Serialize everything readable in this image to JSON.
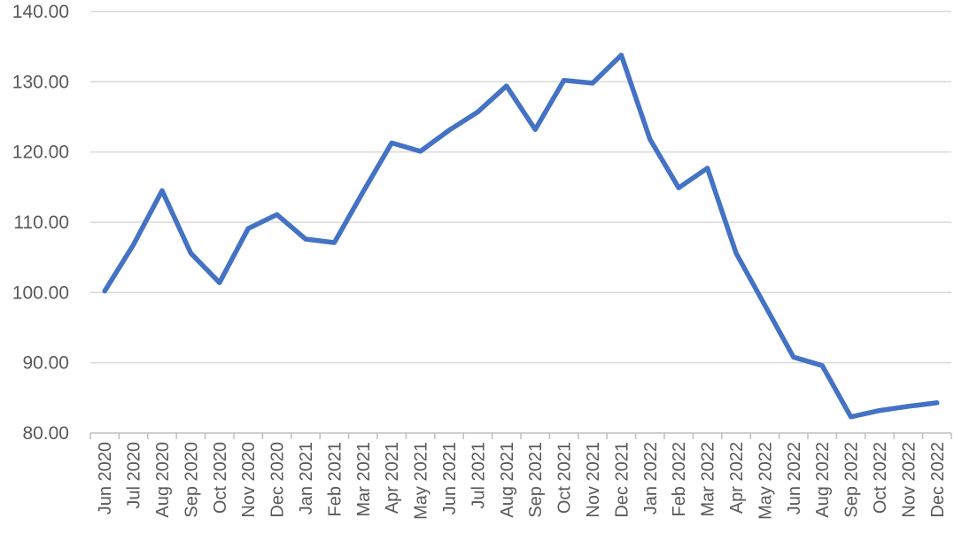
{
  "chart_data": {
    "type": "line",
    "title": "",
    "xlabel": "",
    "ylabel": "",
    "categories": [
      "Jun 2020",
      "Jul 2020",
      "Aug 2020",
      "Sep 2020",
      "Oct 2020",
      "Nov 2020",
      "Dec 2020",
      "Jan 2021",
      "Feb 2021",
      "Mar 2021",
      "Apr 2021",
      "May 2021",
      "Jun 2021",
      "Jul 2021",
      "Aug 2021",
      "Sep 2021",
      "Oct 2021",
      "Nov 2021",
      "Dec 2021",
      "Jan 2022",
      "Feb 2022",
      "Mar 2022",
      "Apr 2022",
      "May 2022",
      "Jun 2022",
      "Aug 2022",
      "Sep 2022",
      "Oct 2022",
      "Nov 2022",
      "Dec 2022"
    ],
    "series": [
      {
        "values": [
          100.2,
          106.8,
          114.5,
          105.6,
          101.4,
          109.1,
          111.1,
          107.6,
          107.1,
          114.3,
          121.3,
          120.1,
          123.1,
          125.7,
          129.4,
          123.2,
          130.2,
          129.8,
          133.8,
          121.8,
          114.9,
          117.7,
          105.6,
          98.2,
          90.8,
          89.6,
          82.3,
          83.2,
          83.8,
          84.3
        ],
        "color": "#4472C4"
      }
    ],
    "yticks": [
      "80.00",
      "90.00",
      "100.00",
      "110.00",
      "120.00",
      "130.00",
      "140.00"
    ],
    "ylim": [
      80,
      140
    ],
    "grid": true,
    "legend": "none"
  }
}
